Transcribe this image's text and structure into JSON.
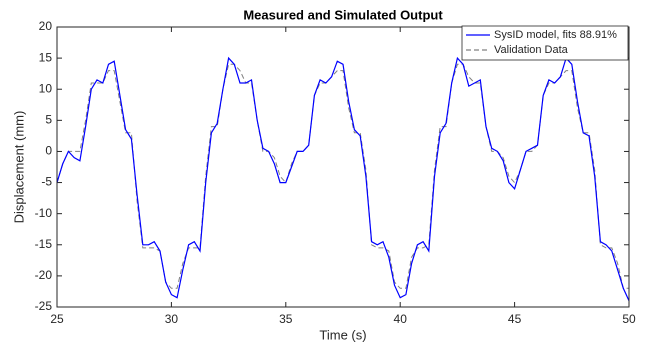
{
  "chart_data": {
    "type": "line",
    "title": "Measured and Simulated Output",
    "xlabel": "Time (s)",
    "ylabel": "Displacement (mm)",
    "x": [
      25,
      25.25,
      25.5,
      25.75,
      26,
      26.25,
      26.5,
      26.75,
      27,
      27.25,
      27.5,
      27.75,
      28,
      28.25,
      28.5,
      28.75,
      29,
      29.25,
      29.5,
      29.75,
      30,
      30.25,
      30.5,
      30.75,
      31,
      31.25,
      31.5,
      31.75,
      32,
      32.25,
      32.5,
      32.75,
      33,
      33.25,
      33.5,
      33.75,
      34,
      34.25,
      34.5,
      34.75,
      35,
      35.25,
      35.5,
      35.75,
      36,
      36.25,
      36.5,
      36.75,
      37,
      37.25,
      37.5,
      37.75,
      38,
      38.25,
      38.5,
      38.75,
      39,
      39.25,
      39.5,
      39.75,
      40,
      40.25,
      40.5,
      40.75,
      41,
      41.25,
      41.5,
      41.75,
      42,
      42.25,
      42.5,
      42.75,
      43,
      43.25,
      43.5,
      43.75,
      44,
      44.25,
      44.5,
      44.75,
      45,
      45.25,
      45.5,
      45.75,
      46,
      46.25,
      46.5,
      46.75,
      47,
      47.25,
      47.5,
      47.75,
      48,
      48.25,
      48.5,
      48.75,
      49,
      49.25,
      49.5,
      49.75,
      50
    ],
    "series": [
      {
        "name": "SysID model, fits 88.91%",
        "color": "#0000ff",
        "line_style": "solid",
        "values": [
          -5,
          -2,
          0,
          -1,
          -1.5,
          4,
          10,
          11.5,
          11,
          14,
          14.5,
          9,
          3.5,
          2,
          -7,
          -15,
          -15,
          -14.5,
          -16,
          -21,
          -23,
          -23.5,
          -19,
          -15,
          -14.5,
          -16,
          -5,
          3,
          4.5,
          10,
          15,
          14,
          11,
          11,
          11.5,
          5,
          0.5,
          0,
          -2,
          -5,
          -5,
          -2.5,
          0,
          0,
          1,
          9,
          11.5,
          11,
          12,
          14.5,
          14,
          8,
          3.5,
          2.5,
          -4,
          -14.5,
          -15,
          -14.5,
          -17,
          -21.5,
          -23.5,
          -23,
          -18,
          -15,
          -14.5,
          -16,
          -4,
          3,
          4.5,
          11,
          15,
          14,
          10.5,
          11,
          11.5,
          4,
          0.5,
          0,
          -1.5,
          -5,
          -6,
          -3,
          0,
          0.5,
          1,
          9,
          11.5,
          11,
          12,
          15,
          14,
          8,
          3,
          2.5,
          -4,
          -14.5,
          -15,
          -16,
          -19,
          -22,
          -24
        ]
      },
      {
        "name": "Validation Data",
        "color": "#808080",
        "line_style": "dashed",
        "values": [
          -5,
          -2,
          0,
          0,
          0,
          5,
          11,
          11,
          11,
          13,
          13,
          8,
          3,
          3,
          -8,
          -15.5,
          -15.5,
          -15.5,
          -16,
          -21,
          -22,
          -22,
          -18,
          -15.5,
          -15.5,
          -15.5,
          -4,
          4,
          4,
          10,
          14,
          14,
          13,
          11,
          11,
          5,
          0,
          0,
          -1,
          -4,
          -5,
          -2,
          0,
          0,
          1,
          9,
          11,
          11,
          12,
          13,
          13,
          7,
          3,
          3,
          -3,
          -15,
          -15.5,
          -15.5,
          -16,
          -21,
          -22,
          -22,
          -17,
          -15.5,
          -15.5,
          -15,
          -3,
          4,
          4,
          11,
          14,
          14,
          12,
          11,
          11,
          4,
          0,
          0,
          -1,
          -4,
          -5,
          -3,
          0,
          0,
          1,
          9,
          11,
          11,
          12,
          13,
          13,
          7,
          3,
          3,
          -3,
          -15,
          -15.5,
          -15.5,
          -18,
          -22,
          -22
        ]
      }
    ],
    "xlim": [
      25,
      50
    ],
    "xticks": [
      25,
      30,
      35,
      40,
      45,
      50
    ],
    "ylim": [
      -25,
      20
    ],
    "yticks": [
      -25,
      -20,
      -15,
      -10,
      -5,
      0,
      5,
      10,
      15,
      20
    ],
    "grid": false,
    "legend": "northeast"
  }
}
